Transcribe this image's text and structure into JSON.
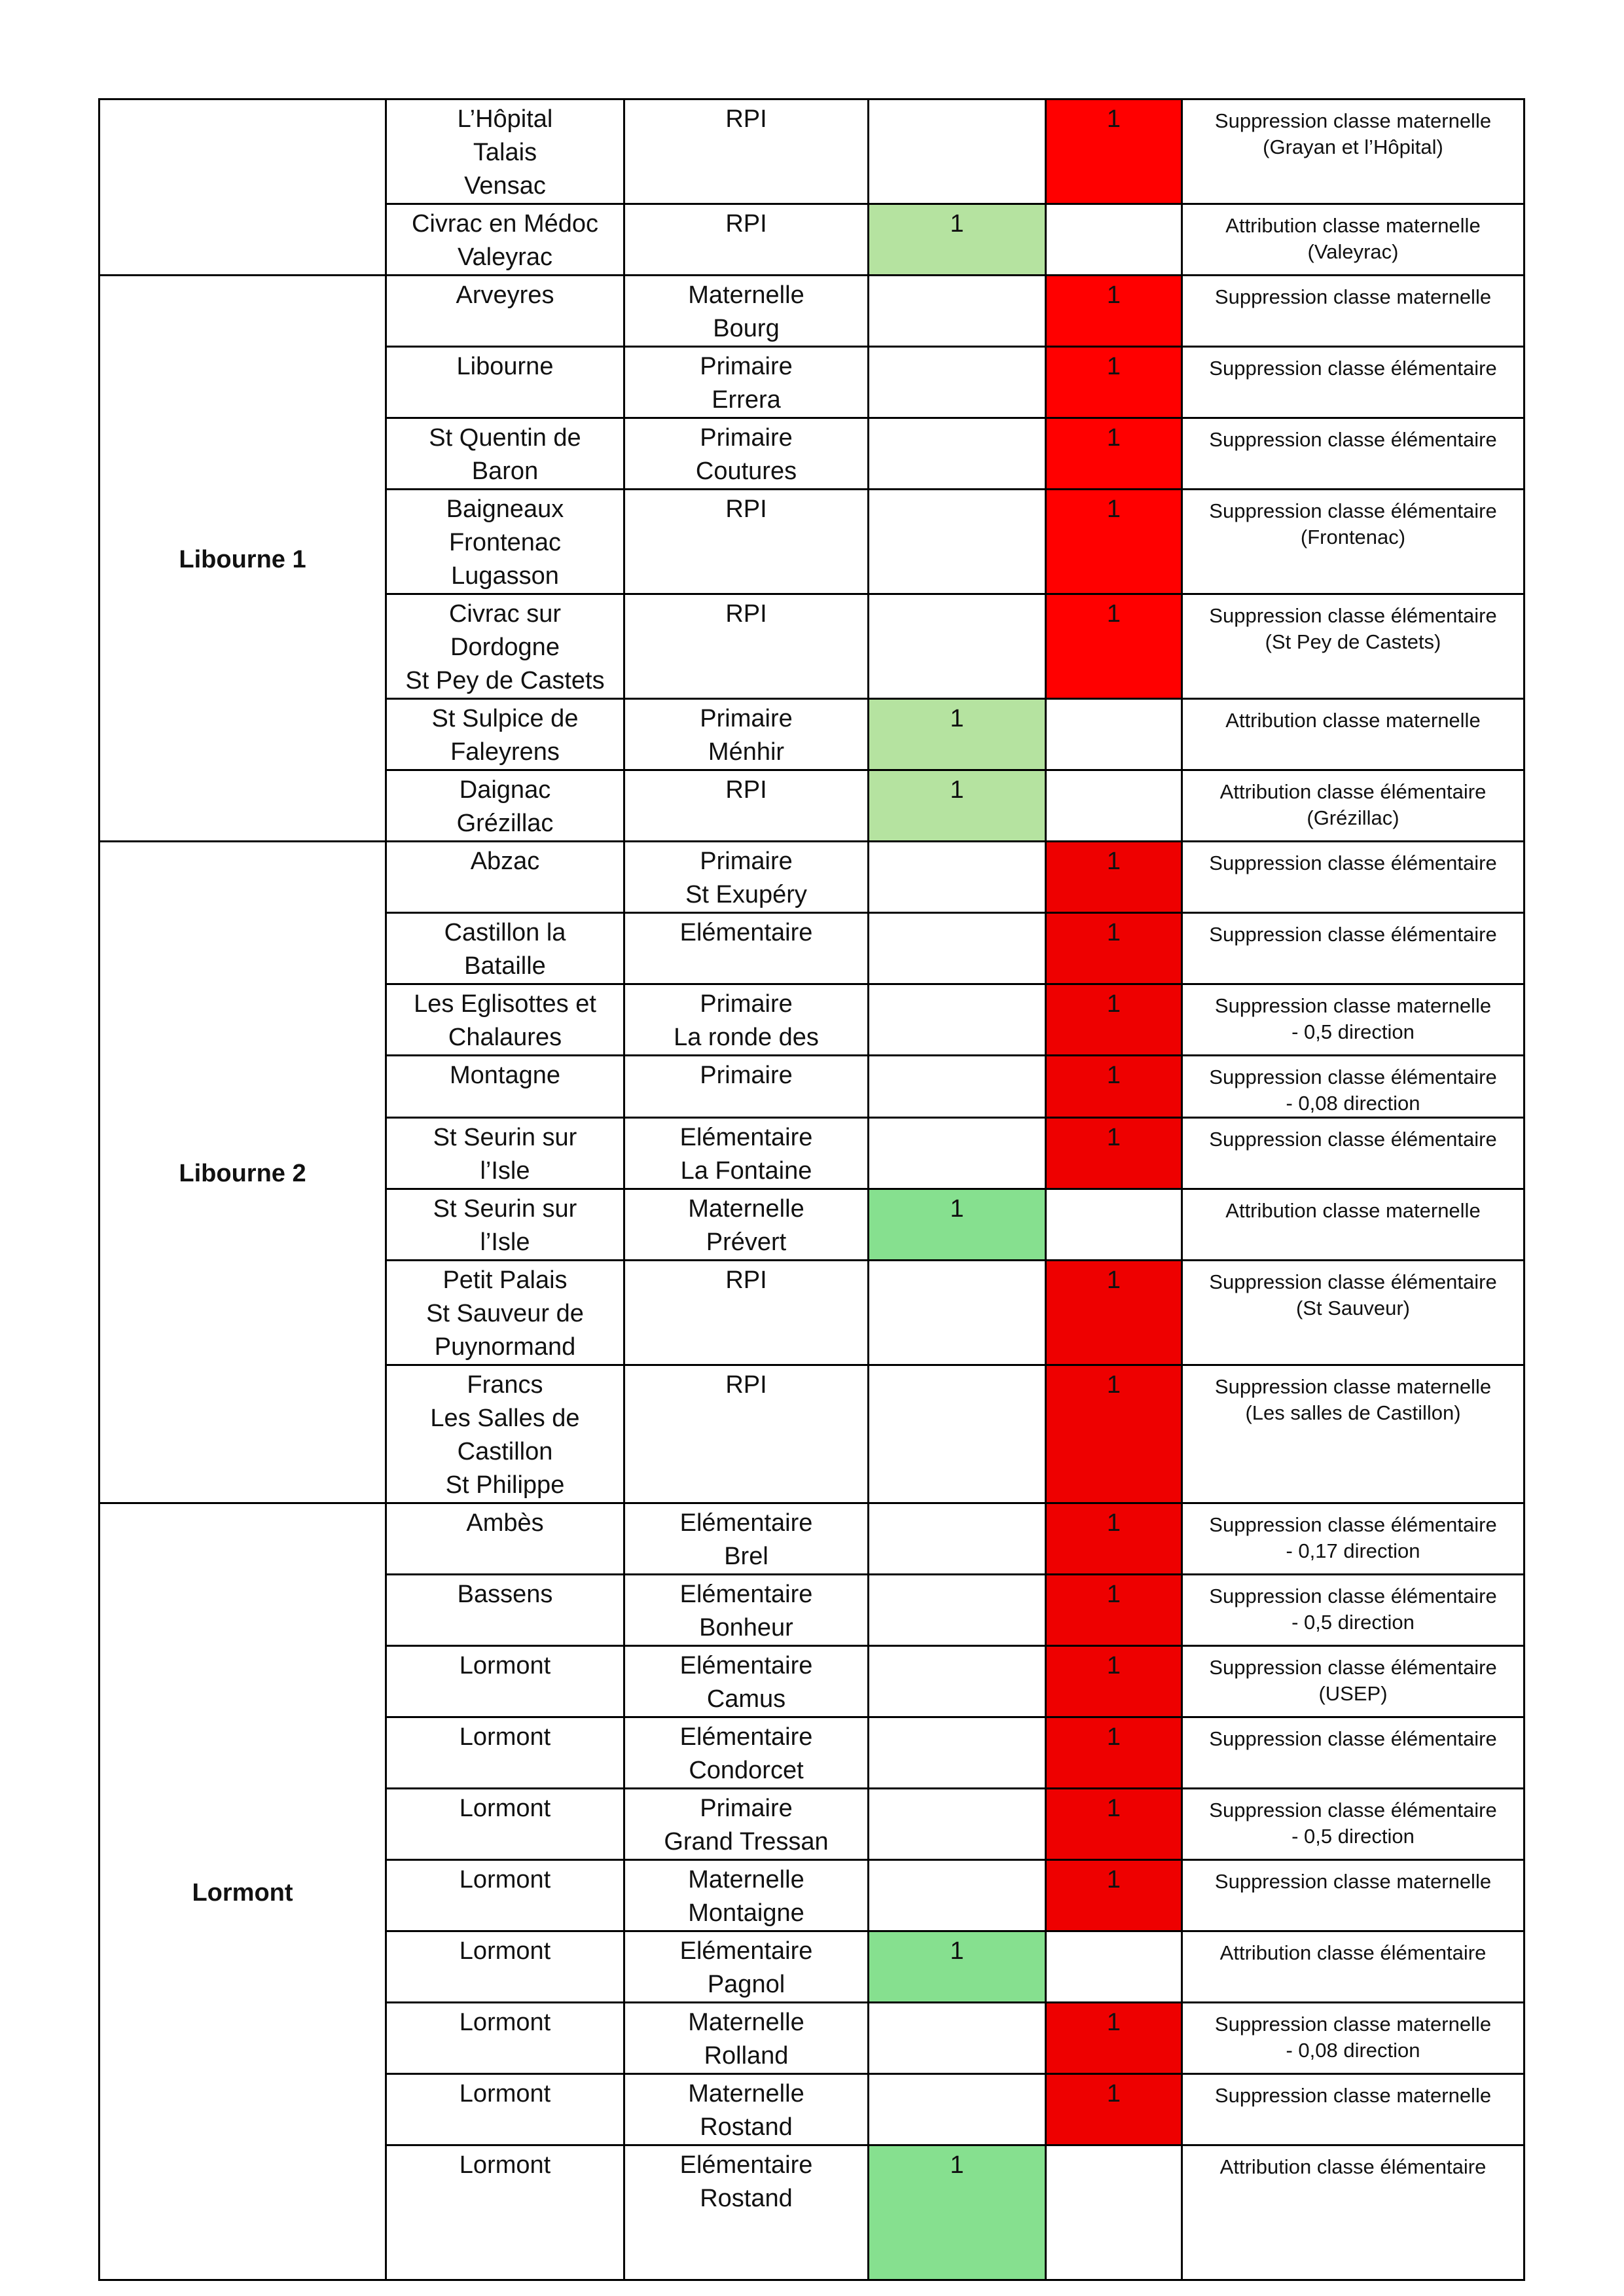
{
  "colors": {
    "red_a": "#ff0000",
    "red_b": "#ee0000",
    "green_a": "#b5e3a0",
    "green_b": "#86e08f"
  },
  "sections": [
    {
      "name": "",
      "rows": [
        {
          "commune": "L’Hôpital\nTalais\nVensac",
          "type": "RPI",
          "plus": "",
          "minus": "1",
          "comment": "Suppression classe maternelle\n(Grayan et l’Hôpital)"
        },
        {
          "commune": "Civrac en Médoc\nValeyrac",
          "type": "RPI",
          "plus": "1",
          "minus": "",
          "comment": "Attribution classe maternelle\n(Valeyrac)"
        }
      ]
    },
    {
      "name": "Libourne 1",
      "rows": [
        {
          "commune": "Arveyres",
          "type": "Maternelle\nBourg",
          "plus": "",
          "minus": "1",
          "comment": "Suppression classe maternelle"
        },
        {
          "commune": "Libourne",
          "type": "Primaire\nErrera",
          "plus": "",
          "minus": "1",
          "comment": "Suppression classe élémentaire"
        },
        {
          "commune": "St Quentin de\nBaron",
          "type": "Primaire\nCoutures",
          "plus": "",
          "minus": "1",
          "comment": "Suppression classe élémentaire"
        },
        {
          "commune": "Baigneaux\nFrontenac\nLugasson",
          "type": "RPI",
          "plus": "",
          "minus": "1",
          "comment": "Suppression classe élémentaire\n(Frontenac)"
        },
        {
          "commune": "Civrac sur\nDordogne\nSt Pey de Castets",
          "type": "RPI",
          "plus": "",
          "minus": "1",
          "comment": "Suppression classe élémentaire\n(St Pey de Castets)"
        },
        {
          "commune": "St Sulpice de\nFaleyrens",
          "type": "Primaire\nMénhir",
          "plus": "1",
          "minus": "",
          "comment": "Attribution classe maternelle"
        },
        {
          "commune": "Daignac\nGrézillac",
          "type": "RPI",
          "plus": "1",
          "minus": "",
          "comment": "Attribution classe élémentaire\n(Grézillac)"
        }
      ]
    },
    {
      "name": "Libourne 2",
      "rows": [
        {
          "commune": "Abzac",
          "type": "Primaire\nSt Exupéry",
          "plus": "",
          "minus": "1",
          "comment": "Suppression classe élémentaire"
        },
        {
          "commune": "Castillon la\nBataille",
          "type": "Elémentaire",
          "plus": "",
          "minus": "1",
          "comment": "Suppression classe élémentaire"
        },
        {
          "commune": "Les Eglisottes et\nChalaures",
          "type": "Primaire\nLa ronde des",
          "plus": "",
          "minus": "1",
          "comment": "Suppression classe maternelle\n- 0,5 direction"
        },
        {
          "commune": "Montagne",
          "type": "Primaire",
          "plus": "",
          "minus": "1",
          "comment": "Suppression classe élémentaire\n- 0,08 direction"
        },
        {
          "commune": "St Seurin sur\nl’Isle",
          "type": "Elémentaire\nLa Fontaine",
          "plus": "",
          "minus": "1",
          "comment": "Suppression classe élémentaire"
        },
        {
          "commune": "St Seurin sur\nl’Isle",
          "type": "Maternelle\nPrévert",
          "plus": "1",
          "minus": "",
          "comment": "Attribution classe maternelle"
        },
        {
          "commune": "Petit Palais\nSt Sauveur de\nPuynormand",
          "type": "RPI",
          "plus": "",
          "minus": "1",
          "comment": "Suppression classe élémentaire\n(St Sauveur)"
        },
        {
          "commune": "Francs\nLes Salles de\nCastillon\nSt Philippe",
          "type": "RPI",
          "plus": "",
          "minus": "1",
          "comment": "Suppression classe maternelle\n(Les salles de Castillon)"
        }
      ]
    },
    {
      "name": "Lormont",
      "rows": [
        {
          "commune": "Ambès",
          "type": "Elémentaire\nBrel",
          "plus": "",
          "minus": "1",
          "comment": "Suppression classe élémentaire\n- 0,17 direction"
        },
        {
          "commune": "Bassens",
          "type": "Elémentaire\nBonheur",
          "plus": "",
          "minus": "1",
          "comment": "Suppression classe élémentaire\n- 0,5 direction"
        },
        {
          "commune": "Lormont",
          "type": "Elémentaire\nCamus",
          "plus": "",
          "minus": "1",
          "comment": "Suppression classe élémentaire\n(USEP)"
        },
        {
          "commune": "Lormont",
          "type": "Elémentaire\nCondorcet",
          "plus": "",
          "minus": "1",
          "comment": "Suppression classe élémentaire"
        },
        {
          "commune": "Lormont",
          "type": "Primaire\nGrand Tressan",
          "plus": "",
          "minus": "1",
          "comment": "Suppression classe élémentaire\n- 0,5 direction"
        },
        {
          "commune": "Lormont",
          "type": "Maternelle\nMontaigne",
          "plus": "",
          "minus": "1",
          "comment": "Suppression classe maternelle"
        },
        {
          "commune": "Lormont",
          "type": "Elémentaire\nPagnol",
          "plus": "1",
          "minus": "",
          "comment": "Attribution classe élémentaire"
        },
        {
          "commune": "Lormont",
          "type": "Maternelle\nRolland",
          "plus": "",
          "minus": "1",
          "comment": "Suppression classe maternelle\n- 0,08 direction"
        },
        {
          "commune": "Lormont",
          "type": "Maternelle\nRostand",
          "plus": "",
          "minus": "1",
          "comment": "Suppression classe maternelle"
        },
        {
          "commune": "Lormont",
          "type": "Elémentaire\nRostand",
          "plus": "1",
          "minus": "",
          "comment": "Attribution classe élémentaire"
        }
      ]
    }
  ]
}
